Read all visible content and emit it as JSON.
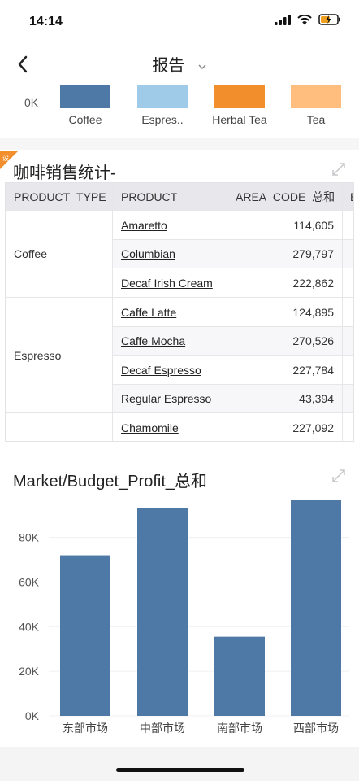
{
  "status": {
    "time": "14:14"
  },
  "nav": {
    "title": "报告"
  },
  "top_chart": {
    "y_label": "0K",
    "categories": [
      "Coffee",
      "Espres..",
      "Herbal Tea",
      "Tea"
    ],
    "colors": [
      "#4e79a7",
      "#a0cbe8",
      "#f28e2b",
      "#ffbe7d"
    ]
  },
  "section1": {
    "title": "咖啡销售统计-",
    "columns": [
      "PRODUCT_TYPE",
      "PRODUCT",
      "AREA_CODE_总和",
      "B"
    ],
    "groups": [
      {
        "type": "Coffee",
        "rows": [
          {
            "product": "Amaretto",
            "value": "114,605"
          },
          {
            "product": "Columbian",
            "value": "279,797"
          },
          {
            "product": "Decaf Irish Cream",
            "value": "222,862"
          }
        ]
      },
      {
        "type": "Espresso",
        "rows": [
          {
            "product": "Caffe Latte",
            "value": "124,895"
          },
          {
            "product": "Caffe Mocha",
            "value": "270,526"
          },
          {
            "product": "Decaf Espresso",
            "value": "227,784"
          },
          {
            "product": "Regular Espresso",
            "value": "43,394"
          }
        ]
      },
      {
        "type": "",
        "rows": [
          {
            "product": "Chamomile",
            "value": "227,092"
          }
        ]
      }
    ]
  },
  "section2": {
    "title": "Market/Budget_Profit_总和"
  },
  "chart_data": {
    "type": "bar",
    "categories": [
      "东部市场",
      "中部市场",
      "南部市场",
      "西部市场"
    ],
    "values": [
      72000,
      93000,
      35500,
      97000
    ],
    "ylim": [
      0,
      97000
    ],
    "yticks": [
      "0K",
      "20K",
      "40K",
      "60K",
      "80K"
    ],
    "color": "#4e79a7"
  }
}
